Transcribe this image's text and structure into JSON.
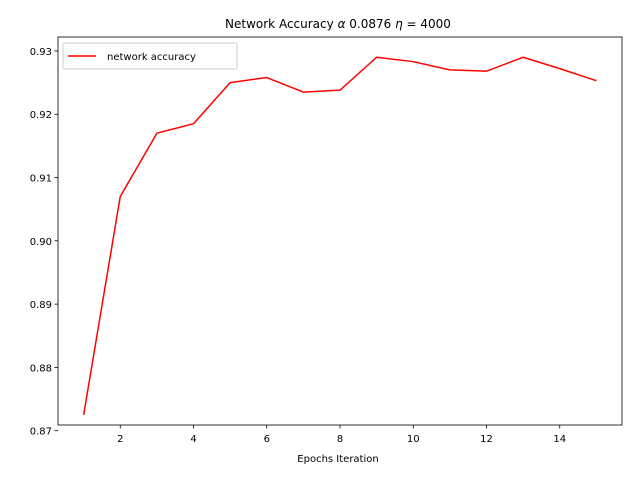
{
  "chart_data": {
    "type": "line",
    "title": "Network Accuracy α 0.0876 η = 4000",
    "title_parts": {
      "prefix": "Network Accuracy ",
      "alpha_symbol": "α",
      "alpha_value": " 0.0876 ",
      "eta_symbol": "η",
      "eta_value": " = 4000"
    },
    "xlabel": "Epochs Iteration",
    "ylabel": "",
    "x": [
      1,
      2,
      3,
      4,
      5,
      6,
      7,
      8,
      9,
      10,
      11,
      12,
      13,
      14,
      15
    ],
    "series": [
      {
        "name": "network accuracy",
        "color": "#ff0000",
        "values": [
          0.8725,
          0.907,
          0.917,
          0.9185,
          0.925,
          0.9258,
          0.9235,
          0.9238,
          0.929,
          0.9283,
          0.927,
          0.9268,
          0.929,
          0.9272,
          0.9253
        ]
      }
    ],
    "xlim": [
      0.3,
      15.7
    ],
    "ylim": [
      0.8709,
      0.9322
    ],
    "xticks": [
      2,
      4,
      6,
      8,
      10,
      12,
      14
    ],
    "xtick_labels": [
      "2",
      "4",
      "6",
      "8",
      "10",
      "12",
      "14"
    ],
    "yticks": [
      0.87,
      0.88,
      0.89,
      0.9,
      0.91,
      0.92,
      0.93
    ],
    "ytick_labels": [
      "0.87",
      "0.88",
      "0.89",
      "0.90",
      "0.91",
      "0.92",
      "0.93"
    ],
    "grid": false,
    "legend_position": "top-left"
  }
}
